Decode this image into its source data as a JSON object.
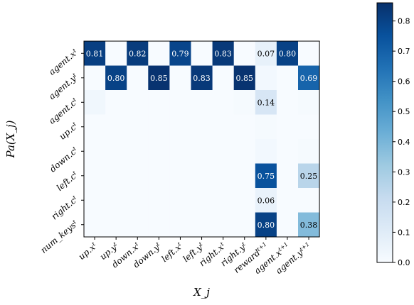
{
  "chart_data": {
    "type": "heatmap",
    "xlabel": "X_j",
    "ylabel": "Pa(X_j)",
    "x_categories": [
      {
        "base": "up.x",
        "sup": "t"
      },
      {
        "base": "up.y",
        "sup": "t"
      },
      {
        "base": "down.x",
        "sup": "t"
      },
      {
        "base": "down.y",
        "sup": "t"
      },
      {
        "base": "left.x",
        "sup": "t"
      },
      {
        "base": "left.y",
        "sup": "t"
      },
      {
        "base": "right.x",
        "sup": "t"
      },
      {
        "base": "right.y",
        "sup": "t"
      },
      {
        "base": "reward",
        "sup": "t+1"
      },
      {
        "base": "agent.x",
        "sup": "t+1"
      },
      {
        "base": "agent.y",
        "sup": "t+1"
      }
    ],
    "y_categories": [
      {
        "base": "agent.x",
        "sup": "t"
      },
      {
        "base": "agent.y",
        "sup": "t"
      },
      {
        "base": "agent.c",
        "sup": "t"
      },
      {
        "base": "up.c",
        "sup": "t"
      },
      {
        "base": "down.c",
        "sup": "t"
      },
      {
        "base": "left.c",
        "sup": "t"
      },
      {
        "base": "right.c",
        "sup": "t"
      },
      {
        "base": "num_keys",
        "sup": "t"
      }
    ],
    "values": [
      [
        0.81,
        0.0,
        0.82,
        0.0,
        0.79,
        0.0,
        0.83,
        0.0,
        0.07,
        0.8,
        0.0
      ],
      [
        0.0,
        0.8,
        0.0,
        0.85,
        0.0,
        0.83,
        0.0,
        0.85,
        0.02,
        0.0,
        0.69
      ],
      [
        0.03,
        0.0,
        0.0,
        0.0,
        0.0,
        0.0,
        0.0,
        0.01,
        0.14,
        0.0,
        0.01
      ],
      [
        0.0,
        0.0,
        0.0,
        0.0,
        0.0,
        0.0,
        0.0,
        0.0,
        0.01,
        0.0,
        0.0
      ],
      [
        0.0,
        0.0,
        0.0,
        0.0,
        0.0,
        0.0,
        0.0,
        0.0,
        0.02,
        0.0,
        0.01
      ],
      [
        0.0,
        0.0,
        0.0,
        0.0,
        0.0,
        0.0,
        0.0,
        0.0,
        0.75,
        0.0,
        0.25
      ],
      [
        0.0,
        0.0,
        0.0,
        0.0,
        0.0,
        0.0,
        0.0,
        0.0,
        0.06,
        0.0,
        0.0
      ],
      [
        0.0,
        0.0,
        0.0,
        0.0,
        0.0,
        0.0,
        0.0,
        0.0,
        0.8,
        0.0,
        0.38
      ]
    ],
    "annotations": [
      {
        "row": 0,
        "col": 0,
        "text": "0.81"
      },
      {
        "row": 0,
        "col": 2,
        "text": "0.82"
      },
      {
        "row": 0,
        "col": 4,
        "text": "0.79"
      },
      {
        "row": 0,
        "col": 6,
        "text": "0.83"
      },
      {
        "row": 0,
        "col": 8,
        "text": "0.07"
      },
      {
        "row": 0,
        "col": 9,
        "text": "0.80"
      },
      {
        "row": 1,
        "col": 1,
        "text": "0.80"
      },
      {
        "row": 1,
        "col": 3,
        "text": "0.85"
      },
      {
        "row": 1,
        "col": 5,
        "text": "0.83"
      },
      {
        "row": 1,
        "col": 7,
        "text": "0.85"
      },
      {
        "row": 1,
        "col": 10,
        "text": "0.69"
      },
      {
        "row": 2,
        "col": 8,
        "text": "0.14"
      },
      {
        "row": 5,
        "col": 8,
        "text": "0.75"
      },
      {
        "row": 5,
        "col": 10,
        "text": "0.25"
      },
      {
        "row": 6,
        "col": 8,
        "text": "0.06"
      },
      {
        "row": 7,
        "col": 8,
        "text": "0.80"
      },
      {
        "row": 7,
        "col": 10,
        "text": "0.38"
      }
    ],
    "colorbar": {
      "min": 0.0,
      "max": 0.86,
      "ticks": [
        "0.0",
        "0.1",
        "0.2",
        "0.3",
        "0.4",
        "0.5",
        "0.6",
        "0.7",
        "0.8"
      ],
      "colormap": "Blues",
      "stops": [
        "#f7fbff",
        "#deebf7",
        "#c6dbef",
        "#9ecae1",
        "#6baed6",
        "#4292c6",
        "#2171b5",
        "#08519c",
        "#08306b"
      ]
    }
  }
}
